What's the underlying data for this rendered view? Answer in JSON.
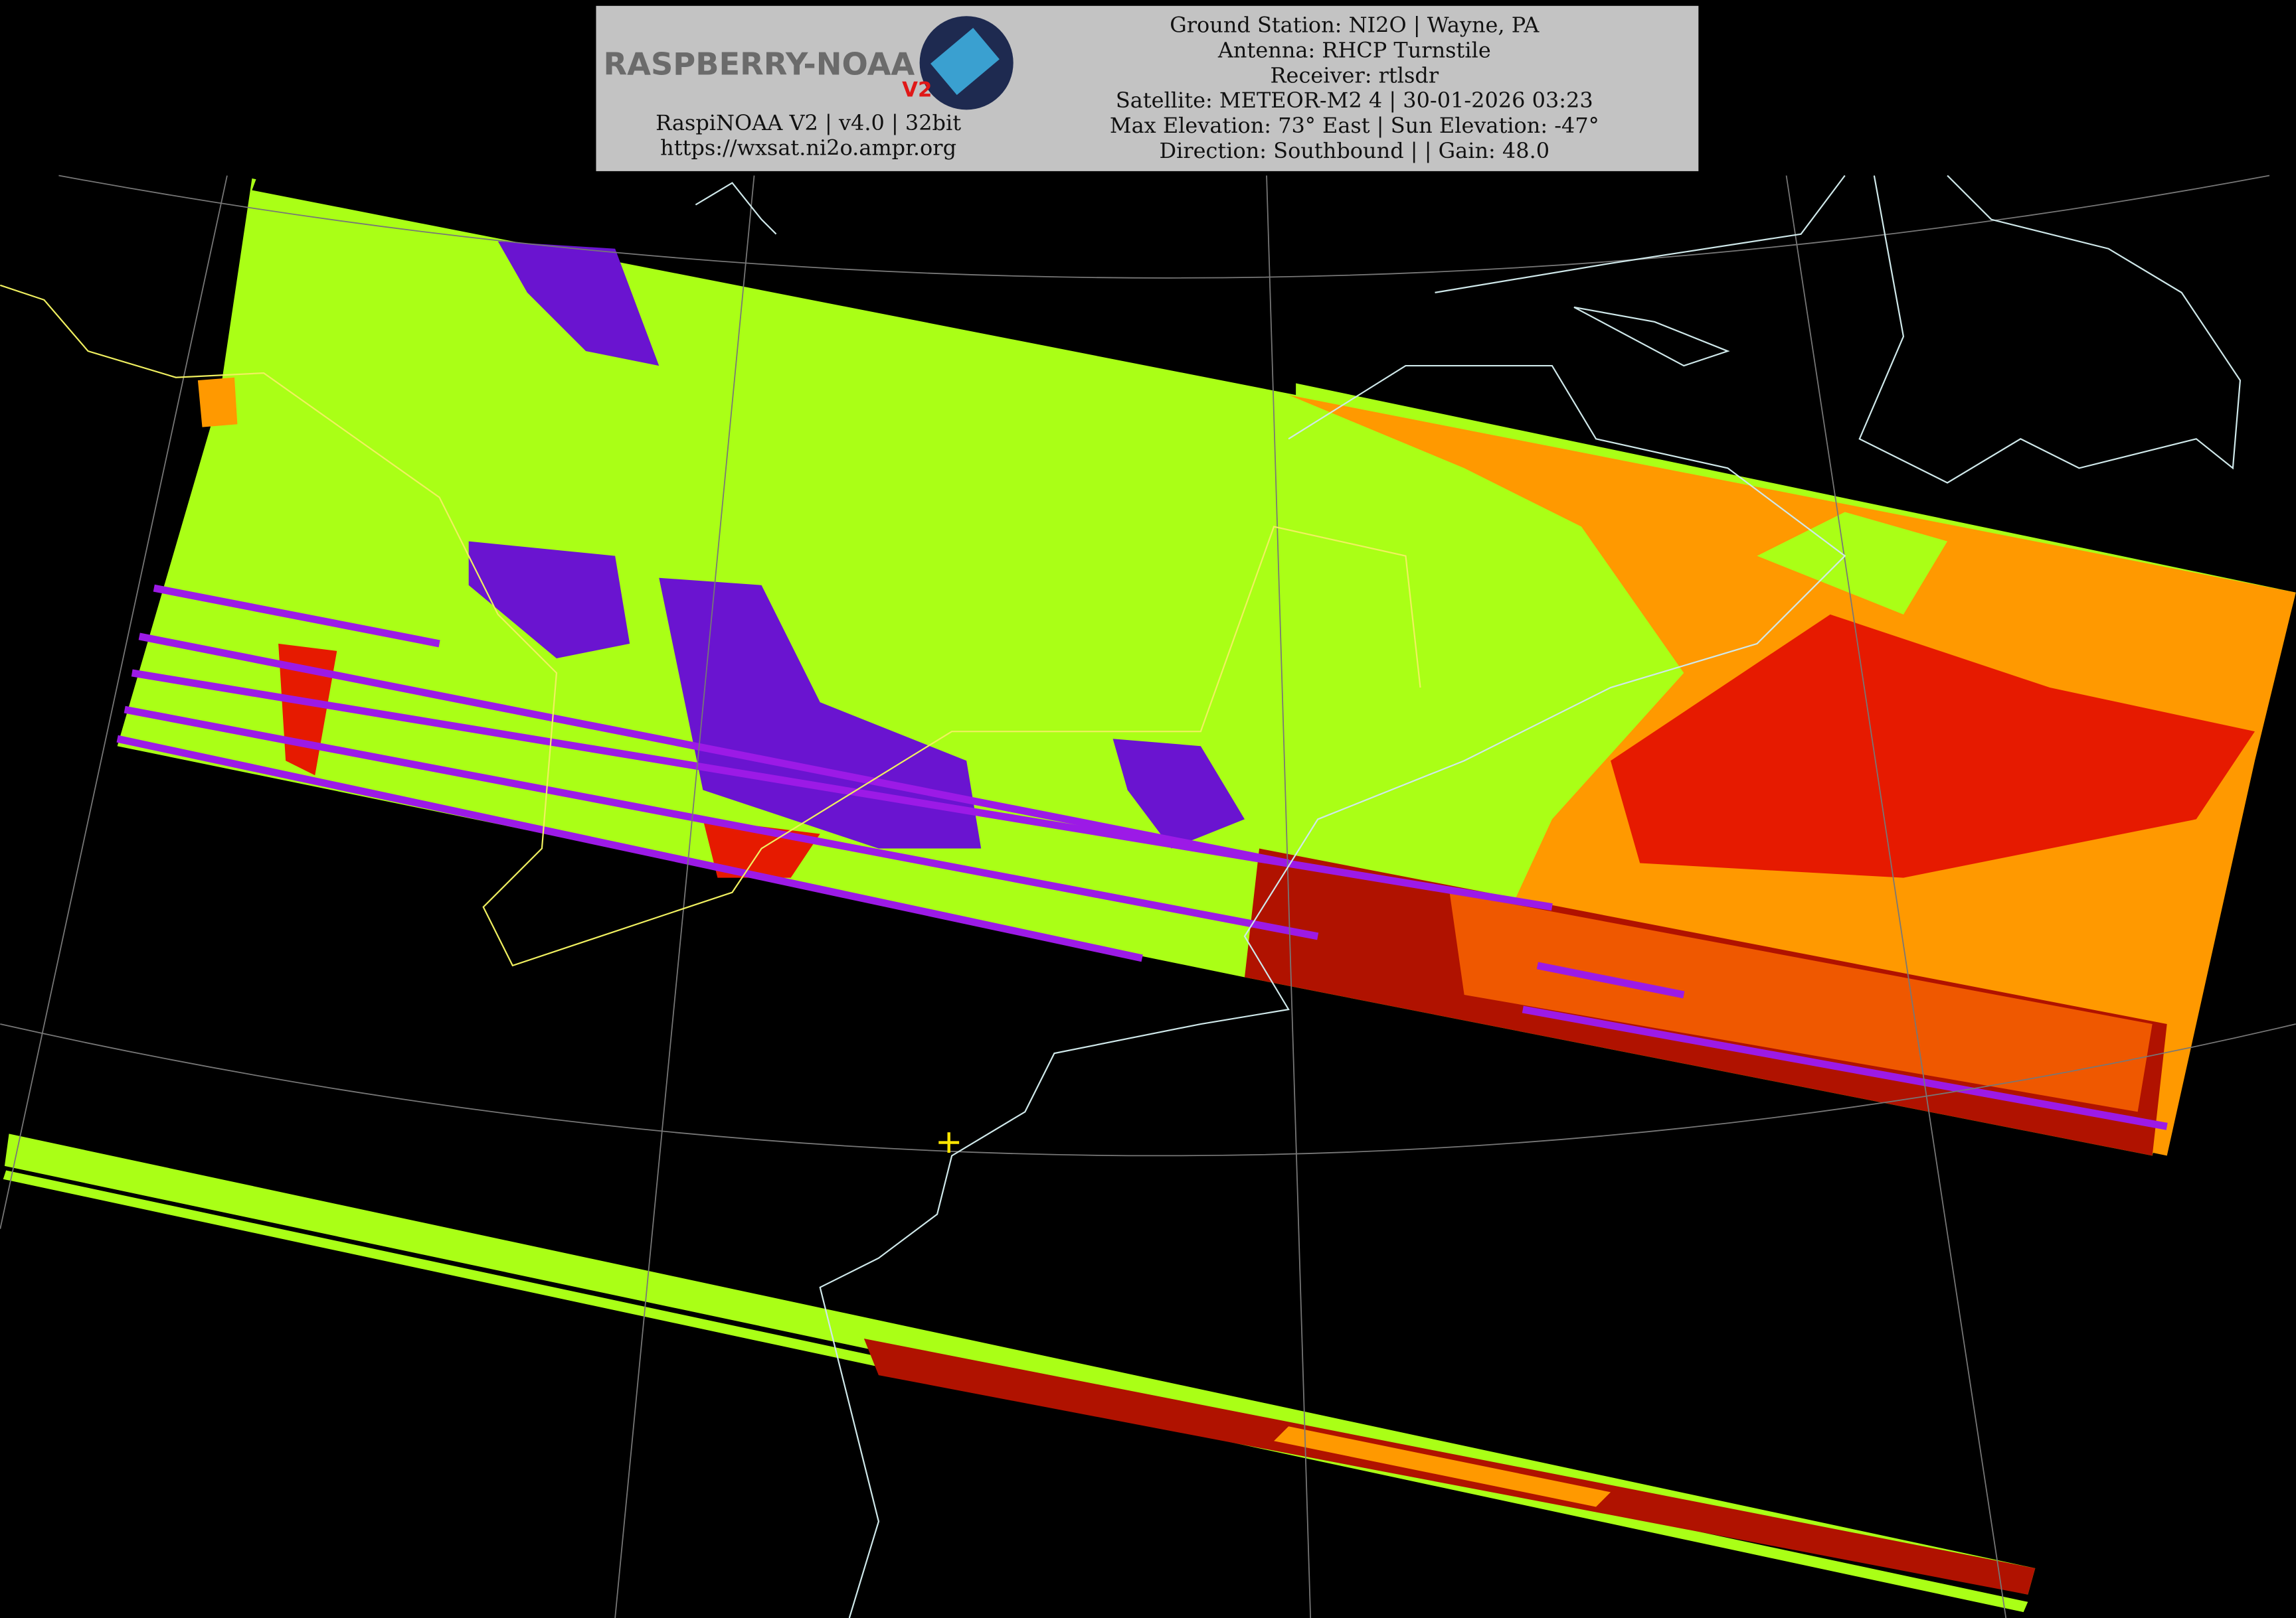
{
  "header": {
    "logo_text": "RASPBERRY-NOAA",
    "logo_badge": "V2",
    "version": "RaspiNOAA V2 | v4.0 | 32bit",
    "url": "https://wxsat.ni2o.ampr.org",
    "info_lines": [
      "Ground Station: NI2O | Wayne, PA",
      "Antenna: RHCP Turnstile",
      "Receiver: rtlsdr",
      "Satellite: METEOR-M2 4 | 30-01-2026 03:23",
      "Max Elevation: 73° East | Sun Elevation: -47°",
      "Direction: Southbound | | Gain: 48.0"
    ]
  }
}
